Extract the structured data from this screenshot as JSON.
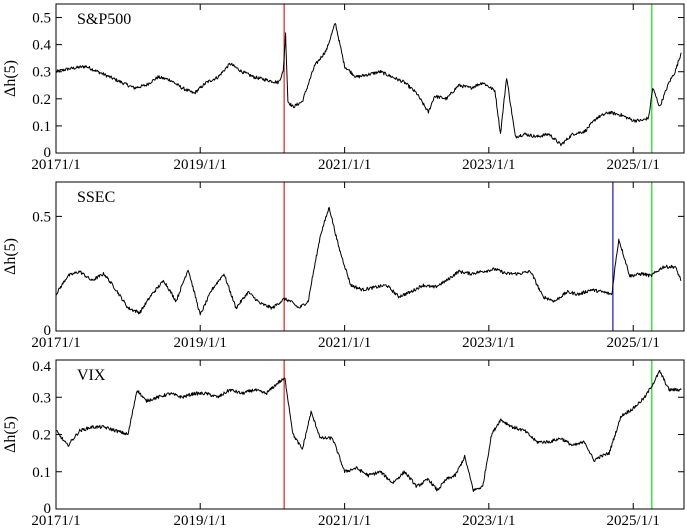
{
  "chart_data": [
    {
      "type": "line",
      "panel_label": "S&P500",
      "ylabel": "Δh(5)",
      "xlim": [
        "2017-01-01",
        "2025-09-15"
      ],
      "ylim": [
        0,
        0.55
      ],
      "yticks": [
        0,
        0.1,
        0.2,
        0.3,
        0.4,
        0.5
      ],
      "ytick_labels": [
        "0",
        "0.1",
        "0.2",
        "0.3",
        "0.4",
        "0.5"
      ],
      "xticks": [
        "2017-01-01",
        "2019-01-01",
        "2021-01-01",
        "2023-01-01",
        "2025-01-01"
      ],
      "xtick_labels": [
        "20171/1",
        "2019/1/1",
        "2021/1/1",
        "2023/1/1",
        "2025/1/1"
      ],
      "vlines": [
        {
          "x": "2020-03-01",
          "color": "#e8302c"
        },
        {
          "x": "2025-04-05",
          "color": "#22e022"
        }
      ],
      "series": [
        {
          "color": "#000000",
          "x": [
            "2017-01-01",
            "2017-03-01",
            "2017-06-01",
            "2017-09-01",
            "2017-12-01",
            "2018-02-01",
            "2018-04-01",
            "2018-06-01",
            "2018-08-01",
            "2018-10-01",
            "2018-12-01",
            "2019-02-01",
            "2019-04-01",
            "2019-06-01",
            "2019-08-01",
            "2019-10-01",
            "2019-12-01",
            "2020-02-01",
            "2020-02-25",
            "2020-03-08",
            "2020-03-20",
            "2020-04-15",
            "2020-06-01",
            "2020-08-01",
            "2020-10-01",
            "2020-11-15",
            "2021-01-01",
            "2021-03-01",
            "2021-05-01",
            "2021-07-01",
            "2021-09-01",
            "2021-11-01",
            "2022-01-01",
            "2022-03-01",
            "2022-04-01",
            "2022-06-01",
            "2022-08-01",
            "2022-10-01",
            "2022-12-01",
            "2023-02-01",
            "2023-03-01",
            "2023-04-01",
            "2023-05-15",
            "2023-07-01",
            "2023-09-01",
            "2023-11-01",
            "2024-01-01",
            "2024-03-01",
            "2024-05-01",
            "2024-07-01",
            "2024-09-01",
            "2024-11-01",
            "2025-01-01",
            "2025-02-15",
            "2025-03-20",
            "2025-04-10",
            "2025-05-15",
            "2025-07-01",
            "2025-08-01",
            "2025-09-01"
          ],
          "y": [
            0.3,
            0.31,
            0.32,
            0.29,
            0.26,
            0.24,
            0.25,
            0.28,
            0.27,
            0.24,
            0.22,
            0.26,
            0.28,
            0.33,
            0.3,
            0.28,
            0.27,
            0.26,
            0.3,
            0.44,
            0.19,
            0.17,
            0.19,
            0.32,
            0.38,
            0.48,
            0.32,
            0.28,
            0.29,
            0.3,
            0.28,
            0.26,
            0.22,
            0.15,
            0.21,
            0.2,
            0.25,
            0.24,
            0.26,
            0.23,
            0.07,
            0.28,
            0.06,
            0.07,
            0.06,
            0.07,
            0.03,
            0.07,
            0.08,
            0.13,
            0.15,
            0.14,
            0.12,
            0.12,
            0.13,
            0.24,
            0.17,
            0.26,
            0.3,
            0.37
          ]
        }
      ]
    },
    {
      "type": "line",
      "panel_label": "SSEC",
      "ylabel": "Δh(5)",
      "xlim": [
        "2017-01-01",
        "2025-09-15"
      ],
      "ylim": [
        0,
        0.65
      ],
      "yticks": [
        0,
        0.5
      ],
      "ytick_labels": [
        "0",
        "0.5"
      ],
      "xticks": [
        "2017-01-01",
        "2019-01-01",
        "2021-01-01",
        "2023-01-01",
        "2025-01-01"
      ],
      "xtick_labels": [
        "20171/1",
        "2019/1/1",
        "2021/1/1",
        "2023/1/1",
        "2025/1/1"
      ],
      "vlines": [
        {
          "x": "2020-03-01",
          "color": "#e8302c"
        },
        {
          "x": "2024-09-20",
          "color": "#2a2ab8"
        },
        {
          "x": "2025-04-05",
          "color": "#22e022"
        }
      ],
      "series": [
        {
          "color": "#000000",
          "x": [
            "2017-01-01",
            "2017-03-01",
            "2017-05-01",
            "2017-07-01",
            "2017-09-01",
            "2017-11-01",
            "2018-01-01",
            "2018-03-01",
            "2018-05-01",
            "2018-07-01",
            "2018-09-01",
            "2018-11-01",
            "2019-01-01",
            "2019-03-01",
            "2019-05-01",
            "2019-07-01",
            "2019-09-01",
            "2019-11-01",
            "2020-01-01",
            "2020-03-01",
            "2020-04-01",
            "2020-05-15",
            "2020-07-01",
            "2020-07-15",
            "2020-09-01",
            "2020-10-15",
            "2020-12-01",
            "2021-02-01",
            "2021-04-01",
            "2021-06-01",
            "2021-08-01",
            "2021-10-01",
            "2021-12-01",
            "2022-02-01",
            "2022-04-01",
            "2022-06-01",
            "2022-08-01",
            "2022-10-01",
            "2022-12-01",
            "2023-02-01",
            "2023-04-01",
            "2023-06-01",
            "2023-08-01",
            "2023-10-01",
            "2023-12-01",
            "2024-02-01",
            "2024-04-01",
            "2024-06-01",
            "2024-08-01",
            "2024-09-15",
            "2024-10-01",
            "2024-10-20",
            "2024-12-15",
            "2025-02-15",
            "2025-04-01",
            "2025-06-01",
            "2025-08-01",
            "2025-09-01"
          ],
          "y": [
            0.16,
            0.24,
            0.26,
            0.22,
            0.25,
            0.18,
            0.1,
            0.08,
            0.16,
            0.22,
            0.13,
            0.27,
            0.07,
            0.18,
            0.25,
            0.1,
            0.17,
            0.12,
            0.1,
            0.14,
            0.13,
            0.1,
            0.13,
            0.2,
            0.42,
            0.54,
            0.37,
            0.2,
            0.18,
            0.19,
            0.2,
            0.15,
            0.17,
            0.2,
            0.19,
            0.22,
            0.26,
            0.25,
            0.26,
            0.27,
            0.25,
            0.25,
            0.26,
            0.15,
            0.13,
            0.17,
            0.16,
            0.18,
            0.17,
            0.16,
            0.28,
            0.4,
            0.24,
            0.25,
            0.24,
            0.28,
            0.28,
            0.22
          ]
        }
      ]
    },
    {
      "type": "line",
      "panel_label": "VIX",
      "ylabel": "Δh(5)",
      "xlim": [
        "2017-01-01",
        "2025-09-15"
      ],
      "ylim": [
        0,
        0.4
      ],
      "yticks": [
        0,
        0.1,
        0.2,
        0.3,
        0.4
      ],
      "ytick_labels": [
        "0",
        "0.1",
        "0.2",
        "0.3",
        "0.4"
      ],
      "xticks": [
        "2017-01-01",
        "2019-01-01",
        "2021-01-01",
        "2023-01-01",
        "2025-01-01"
      ],
      "xtick_labels": [
        "20171/1",
        "2019/1/1",
        "2021/1/1",
        "2023/1/1",
        "2025/1/1"
      ],
      "vlines": [
        {
          "x": "2020-03-01",
          "color": "#e8302c"
        },
        {
          "x": "2025-04-05",
          "color": "#22e022"
        }
      ],
      "series": [
        {
          "color": "#000000",
          "x": [
            "2017-01-01",
            "2017-03-01",
            "2017-05-01",
            "2017-07-01",
            "2017-09-01",
            "2017-11-01",
            "2018-01-01",
            "2018-02-15",
            "2018-04-01",
            "2018-06-01",
            "2018-08-01",
            "2018-10-01",
            "2018-12-01",
            "2019-02-01",
            "2019-04-01",
            "2019-06-01",
            "2019-08-01",
            "2019-10-01",
            "2019-12-01",
            "2020-02-01",
            "2020-03-05",
            "2020-04-15",
            "2020-06-01",
            "2020-07-15",
            "2020-09-01",
            "2020-11-01",
            "2021-01-01",
            "2021-03-01",
            "2021-05-01",
            "2021-07-01",
            "2021-09-01",
            "2021-11-01",
            "2022-01-01",
            "2022-03-01",
            "2022-04-15",
            "2022-06-01",
            "2022-07-15",
            "2022-09-01",
            "2022-10-15",
            "2022-12-01",
            "2023-01-15",
            "2023-03-01",
            "2023-05-01",
            "2023-07-01",
            "2023-09-01",
            "2023-11-01",
            "2024-01-01",
            "2024-03-01",
            "2024-05-01",
            "2024-06-15",
            "2024-07-15",
            "2024-09-01",
            "2024-11-01",
            "2025-01-01",
            "2025-03-01",
            "2025-04-15",
            "2025-05-15",
            "2025-07-01",
            "2025-09-01"
          ],
          "y": [
            0.21,
            0.17,
            0.21,
            0.22,
            0.22,
            0.21,
            0.2,
            0.32,
            0.29,
            0.3,
            0.31,
            0.3,
            0.31,
            0.31,
            0.3,
            0.32,
            0.31,
            0.32,
            0.31,
            0.34,
            0.35,
            0.2,
            0.16,
            0.26,
            0.19,
            0.19,
            0.1,
            0.11,
            0.09,
            0.1,
            0.07,
            0.1,
            0.06,
            0.08,
            0.05,
            0.08,
            0.09,
            0.14,
            0.05,
            0.06,
            0.2,
            0.24,
            0.22,
            0.21,
            0.18,
            0.18,
            0.19,
            0.17,
            0.18,
            0.13,
            0.14,
            0.15,
            0.25,
            0.27,
            0.3,
            0.34,
            0.37,
            0.32,
            0.32
          ]
        }
      ]
    }
  ]
}
